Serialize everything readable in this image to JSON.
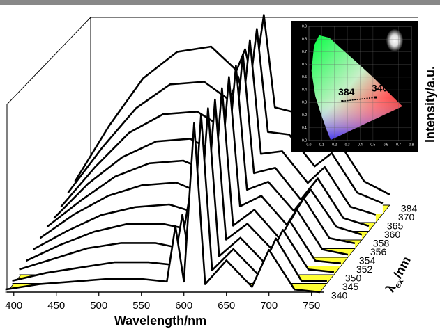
{
  "chart_data": [
    {
      "type": "waterfall",
      "xlabel": "Wavelength/nm",
      "ylabel": "Intensity/a.u.",
      "zlabel": [
        "λ",
        "ex",
        "/nm"
      ],
      "x": [
        390,
        430,
        470,
        510,
        550,
        580,
        590,
        600,
        612,
        625,
        650,
        680,
        700,
        730,
        760
      ],
      "xlim": [
        392,
        765
      ],
      "xticks": [
        400,
        450,
        500,
        550,
        600,
        650,
        700,
        750
      ],
      "ylim": [
        0,
        0.8
      ],
      "floor_color": "#ffff33",
      "series": [
        {
          "name": "340",
          "color": "#000000",
          "values": [
            0.01,
            0.03,
            0.04,
            0.05,
            0.05,
            0.04,
            0.25,
            0.04,
            0.64,
            0.03,
            0.12,
            0.02,
            0.16,
            0.01,
            0
          ]
        },
        {
          "name": "345",
          "color": "#000000",
          "values": [
            0.01,
            0.04,
            0.06,
            0.08,
            0.08,
            0.07,
            0.26,
            0.06,
            0.64,
            0.05,
            0.13,
            0.03,
            0.17,
            0.01,
            0.01
          ]
        },
        {
          "name": "350",
          "color": "#000000",
          "values": [
            0.02,
            0.06,
            0.1,
            0.12,
            0.12,
            0.1,
            0.29,
            0.09,
            0.63,
            0.07,
            0.14,
            0.04,
            0.17,
            0.02,
            0.01
          ]
        },
        {
          "name": "352",
          "color": "#000000",
          "values": [
            0.02,
            0.08,
            0.13,
            0.16,
            0.16,
            0.14,
            0.31,
            0.12,
            0.63,
            0.1,
            0.16,
            0.06,
            0.17,
            0.02,
            0.01
          ]
        },
        {
          "name": "354",
          "color": "#000000",
          "values": [
            0.03,
            0.1,
            0.16,
            0.19,
            0.2,
            0.17,
            0.34,
            0.15,
            0.64,
            0.12,
            0.18,
            0.07,
            0.18,
            0.03,
            0.01
          ]
        },
        {
          "name": "356",
          "color": "#000000",
          "values": [
            0.04,
            0.13,
            0.2,
            0.24,
            0.25,
            0.21,
            0.36,
            0.19,
            0.65,
            0.16,
            0.2,
            0.09,
            0.19,
            0.04,
            0.02
          ]
        },
        {
          "name": "358",
          "color": "#000000",
          "values": [
            0.05,
            0.15,
            0.24,
            0.29,
            0.3,
            0.26,
            0.4,
            0.23,
            0.66,
            0.19,
            0.22,
            0.11,
            0.19,
            0.05,
            0.02
          ]
        },
        {
          "name": "360",
          "color": "#000000",
          "values": [
            0.05,
            0.18,
            0.28,
            0.34,
            0.35,
            0.3,
            0.43,
            0.26,
            0.67,
            0.22,
            0.24,
            0.12,
            0.2,
            0.05,
            0.02
          ]
        },
        {
          "name": "365",
          "color": "#000000",
          "values": [
            0.06,
            0.21,
            0.34,
            0.41,
            0.42,
            0.36,
            0.48,
            0.32,
            0.69,
            0.26,
            0.27,
            0.15,
            0.21,
            0.06,
            0.03
          ]
        },
        {
          "name": "370",
          "color": "#000000",
          "values": [
            0.08,
            0.25,
            0.4,
            0.49,
            0.5,
            0.43,
            0.52,
            0.38,
            0.7,
            0.31,
            0.3,
            0.18,
            0.23,
            0.08,
            0.04
          ]
        },
        {
          "name": "384",
          "color": "#000000",
          "values": [
            0.09,
            0.3,
            0.48,
            0.58,
            0.6,
            0.51,
            0.59,
            0.45,
            0.72,
            0.37,
            0.35,
            0.21,
            0.24,
            0.09,
            0.04
          ]
        }
      ]
    },
    {
      "type": "cie",
      "xlim": [
        0,
        0.8
      ],
      "ylim": [
        0,
        0.9
      ],
      "xticks": [
        {
          "value": 0,
          "label": "0.0"
        },
        0.1,
        0.2,
        0.3,
        0.4,
        0.5,
        0.6,
        0.7,
        0.8
      ],
      "yticks": [
        {
          "value": 0,
          "label": "0.0"
        },
        0.1,
        0.2,
        0.3,
        0.4,
        0.5,
        0.6,
        0.7,
        0.8,
        0.9
      ],
      "points": {
        "labels": [
          "384",
          "340"
        ],
        "x": [
          0.26,
          0.52
        ],
        "y": [
          0.31,
          0.34
        ]
      }
    }
  ]
}
